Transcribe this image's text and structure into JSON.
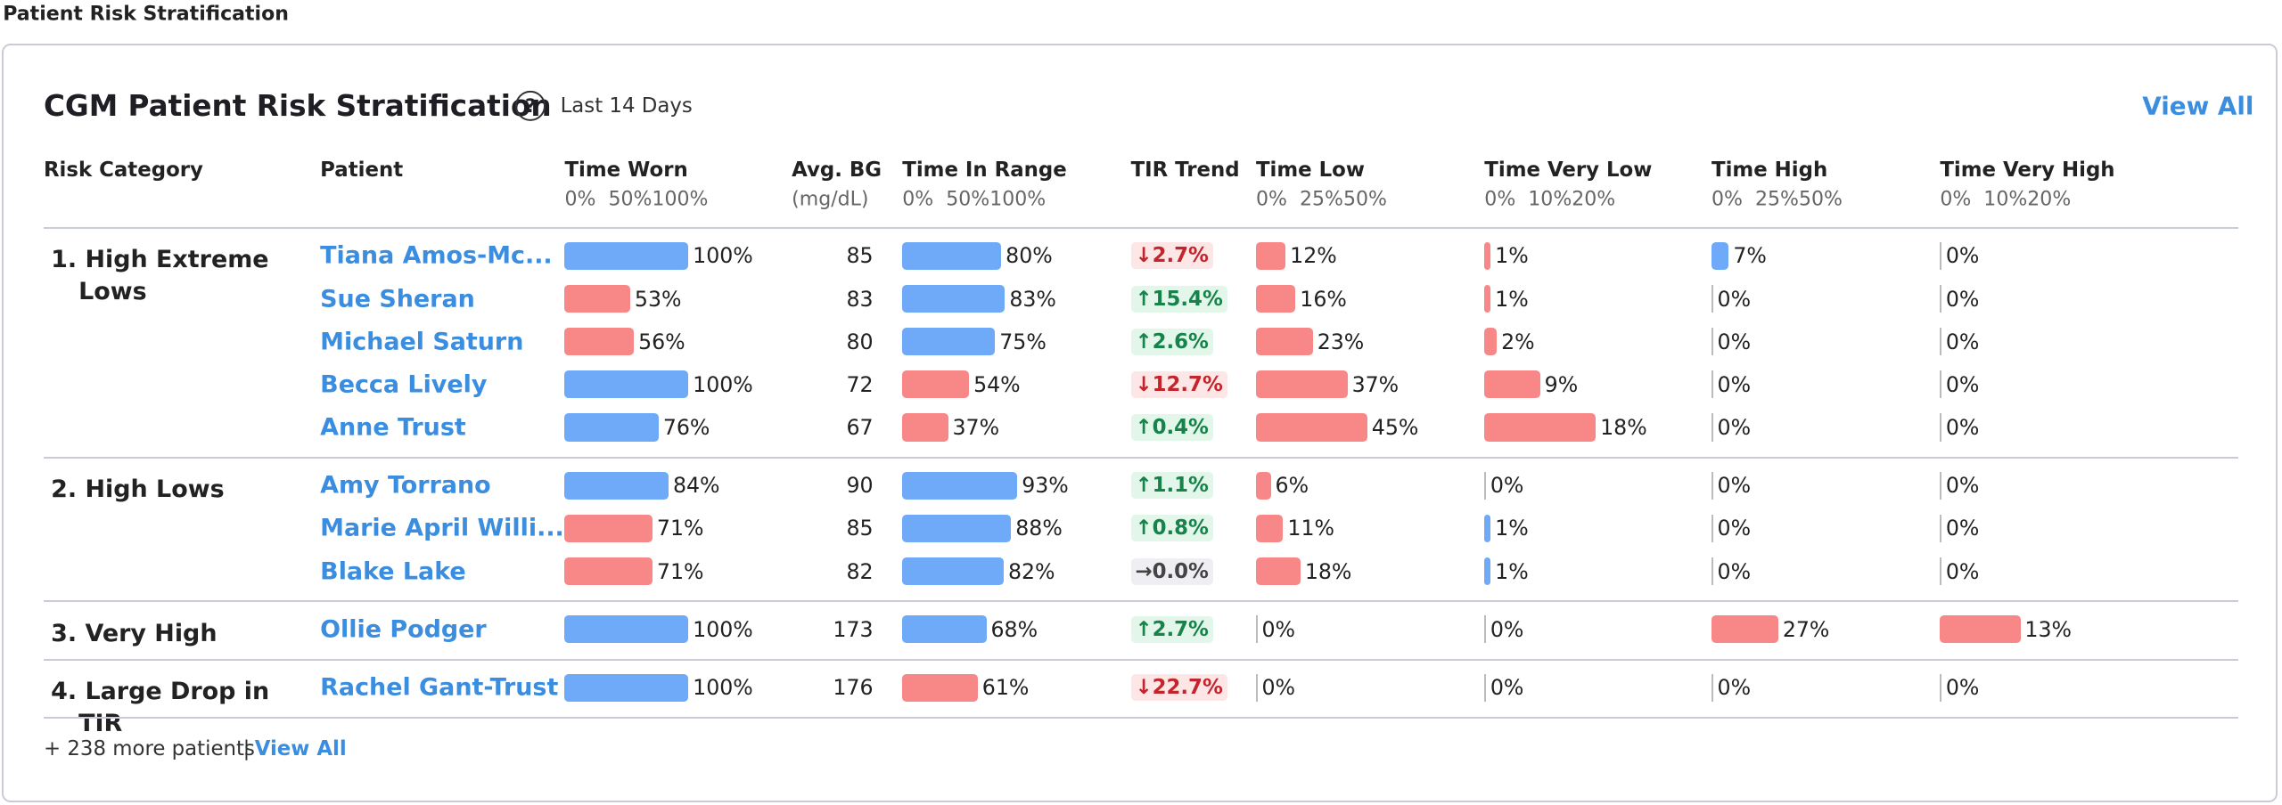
{
  "page_title": "Patient Risk Stratification",
  "card": {
    "title": "CGM Patient Risk Stratification",
    "help": "?",
    "period": "Last 14 Days",
    "view_all": "View All"
  },
  "columns": [
    {
      "label": "Risk Category"
    },
    {
      "label": "Patient"
    },
    {
      "label": "Time Worn",
      "lim": [
        0,
        100
      ],
      "ticks": [
        {
          "value": 0,
          "label": "0%"
        },
        {
          "value": 50,
          "label": "50%"
        },
        {
          "value": 100,
          "label": "100%"
        }
      ]
    },
    {
      "label": "Avg. BG",
      "sublabel": "(mg/dL)"
    },
    {
      "label": "Time In Range",
      "lim": [
        0,
        100
      ],
      "ticks": [
        {
          "value": 0,
          "label": "0%"
        },
        {
          "value": 50,
          "label": "50%"
        },
        {
          "value": 100,
          "label": "100%"
        }
      ]
    },
    {
      "label": "TIR Trend"
    },
    {
      "label": "Time Low",
      "lim": [
        0,
        50
      ],
      "ticks": [
        {
          "value": 0,
          "label": "0%"
        },
        {
          "value": 25,
          "label": "25%"
        },
        {
          "value": 50,
          "label": "50%"
        }
      ]
    },
    {
      "label": "Time Very Low",
      "lim": [
        0,
        20
      ],
      "ticks": [
        {
          "value": 0,
          "label": "0%"
        },
        {
          "value": 10,
          "label": "10%"
        },
        {
          "value": 20,
          "label": "20%"
        }
      ]
    },
    {
      "label": "Time High",
      "lim": [
        0,
        50
      ],
      "ticks": [
        {
          "value": 0,
          "label": "0%"
        },
        {
          "value": 25,
          "label": "25%"
        },
        {
          "value": 50,
          "label": "50%"
        }
      ]
    },
    {
      "label": "Time Very High",
      "lim": [
        0,
        20
      ],
      "ticks": [
        {
          "value": 0,
          "label": "0%"
        },
        {
          "value": 10,
          "label": "10%"
        },
        {
          "value": 20,
          "label": "20%"
        }
      ]
    }
  ],
  "groups": [
    {
      "category": "1. High Extreme Lows",
      "patients": [
        {
          "patient": "Tiana Amos-Mc...",
          "cells": [
            {
              "value": 100,
              "label": "100%",
              "color": "#6eaaf8"
            },
            85,
            {
              "value": 80,
              "label": "80%",
              "color": "#6eaaf8"
            },
            {
              "value": -2.7,
              "label": "↓2.7%"
            },
            {
              "value": 12,
              "label": "12%",
              "color": "#f88888"
            },
            {
              "value": 1,
              "label": "1%",
              "color": "#f88888"
            },
            {
              "value": 7,
              "label": "7%",
              "color": "#6eaaf8"
            },
            {
              "value": 0,
              "label": "0%"
            }
          ]
        },
        {
          "patient": "Sue Sheran",
          "cells": [
            {
              "value": 53,
              "label": "53%",
              "color": "#f88888"
            },
            83,
            {
              "value": 83,
              "label": "83%",
              "color": "#6eaaf8"
            },
            {
              "value": 15.4,
              "label": "↑15.4%"
            },
            {
              "value": 16,
              "label": "16%",
              "color": "#f88888"
            },
            {
              "value": 1,
              "label": "1%",
              "color": "#f88888"
            },
            {
              "value": 0,
              "label": "0%"
            },
            {
              "value": 0,
              "label": "0%"
            }
          ]
        },
        {
          "patient": "Michael Saturn",
          "cells": [
            {
              "value": 56,
              "label": "56%",
              "color": "#f88888"
            },
            80,
            {
              "value": 75,
              "label": "75%",
              "color": "#6eaaf8"
            },
            {
              "value": 2.6,
              "label": "↑2.6%"
            },
            {
              "value": 23,
              "label": "23%",
              "color": "#f88888"
            },
            {
              "value": 2,
              "label": "2%",
              "color": "#f88888"
            },
            {
              "value": 0,
              "label": "0%"
            },
            {
              "value": 0,
              "label": "0%"
            }
          ]
        },
        {
          "patient": "Becca Lively",
          "cells": [
            {
              "value": 100,
              "label": "100%",
              "color": "#6eaaf8"
            },
            72,
            {
              "value": 54,
              "label": "54%",
              "color": "#f88888"
            },
            {
              "value": -12.7,
              "label": "↓12.7%"
            },
            {
              "value": 37,
              "label": "37%",
              "color": "#f88888"
            },
            {
              "value": 9,
              "label": "9%",
              "color": "#f88888"
            },
            {
              "value": 0,
              "label": "0%"
            },
            {
              "value": 0,
              "label": "0%"
            }
          ]
        },
        {
          "patient": "Anne Trust",
          "cells": [
            {
              "value": 76,
              "label": "76%",
              "color": "#6eaaf8"
            },
            67,
            {
              "value": 37,
              "label": "37%",
              "color": "#f88888"
            },
            {
              "value": 0.4,
              "label": "↑0.4%"
            },
            {
              "value": 45,
              "label": "45%",
              "color": "#f88888"
            },
            {
              "value": 18,
              "label": "18%",
              "color": "#f88888"
            },
            {
              "value": 0,
              "label": "0%"
            },
            {
              "value": 0,
              "label": "0%"
            }
          ]
        }
      ]
    },
    {
      "category": "2. High Lows",
      "patients": [
        {
          "patient": "Amy Torrano",
          "cells": [
            {
              "value": 84,
              "label": "84%",
              "color": "#6eaaf8"
            },
            90,
            {
              "value": 93,
              "label": "93%",
              "color": "#6eaaf8"
            },
            {
              "value": 1.1,
              "label": "↑1.1%"
            },
            {
              "value": 6,
              "label": "6%",
              "color": "#f88888"
            },
            {
              "value": 0,
              "label": "0%"
            },
            {
              "value": 0,
              "label": "0%"
            },
            {
              "value": 0,
              "label": "0%"
            }
          ]
        },
        {
          "patient": "Marie April Willi...",
          "cells": [
            {
              "value": 71,
              "label": "71%",
              "color": "#f88888"
            },
            85,
            {
              "value": 88,
              "label": "88%",
              "color": "#6eaaf8"
            },
            {
              "value": 0.8,
              "label": "↑0.8%"
            },
            {
              "value": 11,
              "label": "11%",
              "color": "#f88888"
            },
            {
              "value": 1,
              "label": "1%",
              "color": "#6eaaf8"
            },
            {
              "value": 0,
              "label": "0%"
            },
            {
              "value": 0,
              "label": "0%"
            }
          ]
        },
        {
          "patient": "Blake Lake",
          "cells": [
            {
              "value": 71,
              "label": "71%",
              "color": "#f88888"
            },
            82,
            {
              "value": 82,
              "label": "82%",
              "color": "#6eaaf8"
            },
            {
              "value": 0,
              "label": "→0.0%"
            },
            {
              "value": 18,
              "label": "18%",
              "color": "#f88888"
            },
            {
              "value": 1,
              "label": "1%",
              "color": "#6eaaf8"
            },
            {
              "value": 0,
              "label": "0%"
            },
            {
              "value": 0,
              "label": "0%"
            }
          ]
        }
      ]
    },
    {
      "category": "3. Very High",
      "patients": [
        {
          "patient": "Ollie Podger",
          "cells": [
            {
              "value": 100,
              "label": "100%",
              "color": "#6eaaf8"
            },
            173,
            {
              "value": 68,
              "label": "68%",
              "color": "#6eaaf8"
            },
            {
              "value": 2.7,
              "label": "↑2.7%"
            },
            {
              "value": 0,
              "label": "0%"
            },
            {
              "value": 0,
              "label": "0%"
            },
            {
              "value": 27,
              "label": "27%",
              "color": "#f88888"
            },
            {
              "value": 13,
              "label": "13%",
              "color": "#f88888"
            }
          ]
        }
      ]
    },
    {
      "category": "4. Large Drop in TIR",
      "patients": [
        {
          "patient": "Rachel Gant-Trust",
          "cells": [
            {
              "value": 100,
              "label": "100%",
              "color": "#6eaaf8"
            },
            176,
            {
              "value": 61,
              "label": "61%",
              "color": "#f88888"
            },
            {
              "value": -22.7,
              "label": "↓22.7%"
            },
            {
              "value": 0,
              "label": "0%"
            },
            {
              "value": 0,
              "label": "0%"
            },
            {
              "value": 0,
              "label": "0%"
            },
            {
              "value": 0,
              "label": "0%"
            }
          ]
        }
      ]
    }
  ],
  "footer": {
    "more": "+ 238 more patients",
    "separator": "|",
    "view_all": "View All"
  }
}
